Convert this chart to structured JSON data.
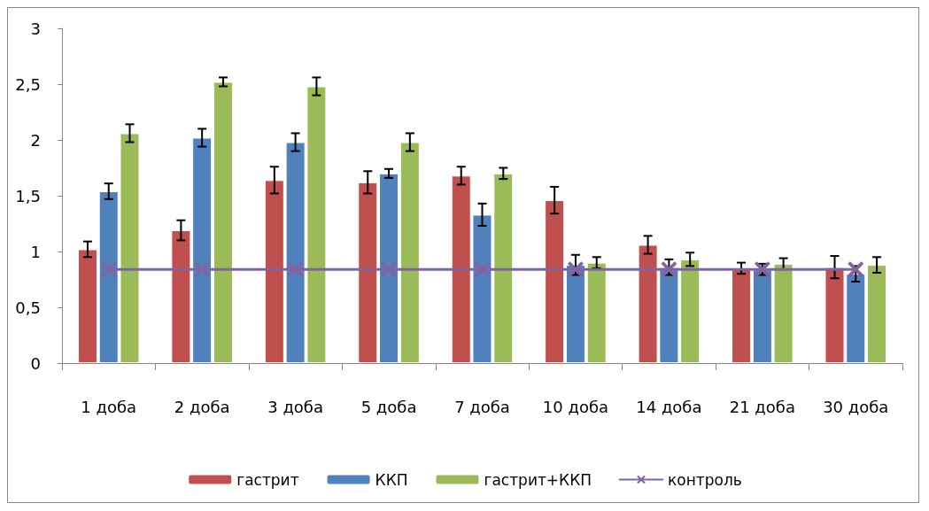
{
  "chart_data": {
    "type": "bar",
    "categories": [
      "1 доба",
      "2 доба",
      "3 доба",
      "5 доба",
      "7 доба",
      "10 доба",
      "14 доба",
      "21 доба",
      "30 доба"
    ],
    "series": [
      {
        "name": "гастрит",
        "color": "#c0504d",
        "values": [
          1.02,
          1.19,
          1.64,
          1.62,
          1.68,
          1.46,
          1.06,
          0.85,
          0.86
        ],
        "errors": [
          0.07,
          0.09,
          0.12,
          0.1,
          0.08,
          0.12,
          0.08,
          0.05,
          0.1
        ]
      },
      {
        "name": "ККП",
        "color": "#4f81bd",
        "values": [
          1.54,
          2.02,
          1.98,
          1.7,
          1.33,
          0.88,
          0.86,
          0.84,
          0.8
        ],
        "errors": [
          0.07,
          0.08,
          0.08,
          0.04,
          0.1,
          0.09,
          0.07,
          0.05,
          0.07
        ]
      },
      {
        "name": "гастрит+ККП",
        "color": "#9bbb59",
        "values": [
          2.06,
          2.52,
          2.48,
          1.98,
          1.7,
          0.9,
          0.93,
          0.89,
          0.88
        ],
        "errors": [
          0.08,
          0.04,
          0.08,
          0.08,
          0.05,
          0.05,
          0.06,
          0.05,
          0.07
        ]
      },
      {
        "name": "контроль",
        "type": "line",
        "color": "#8064a2",
        "marker": "cross",
        "values": [
          0.84,
          0.84,
          0.84,
          0.84,
          0.84,
          0.84,
          0.84,
          0.84,
          0.84
        ]
      }
    ],
    "ylim": [
      0,
      3
    ],
    "yticks": [
      0,
      {
        "value": 0.5,
        "label": "0,5"
      },
      1,
      {
        "value": 1.5,
        "label": "1,5"
      },
      2,
      {
        "value": 2.5,
        "label": "2,5"
      },
      3
    ],
    "grid": false,
    "legend": "bottom"
  }
}
